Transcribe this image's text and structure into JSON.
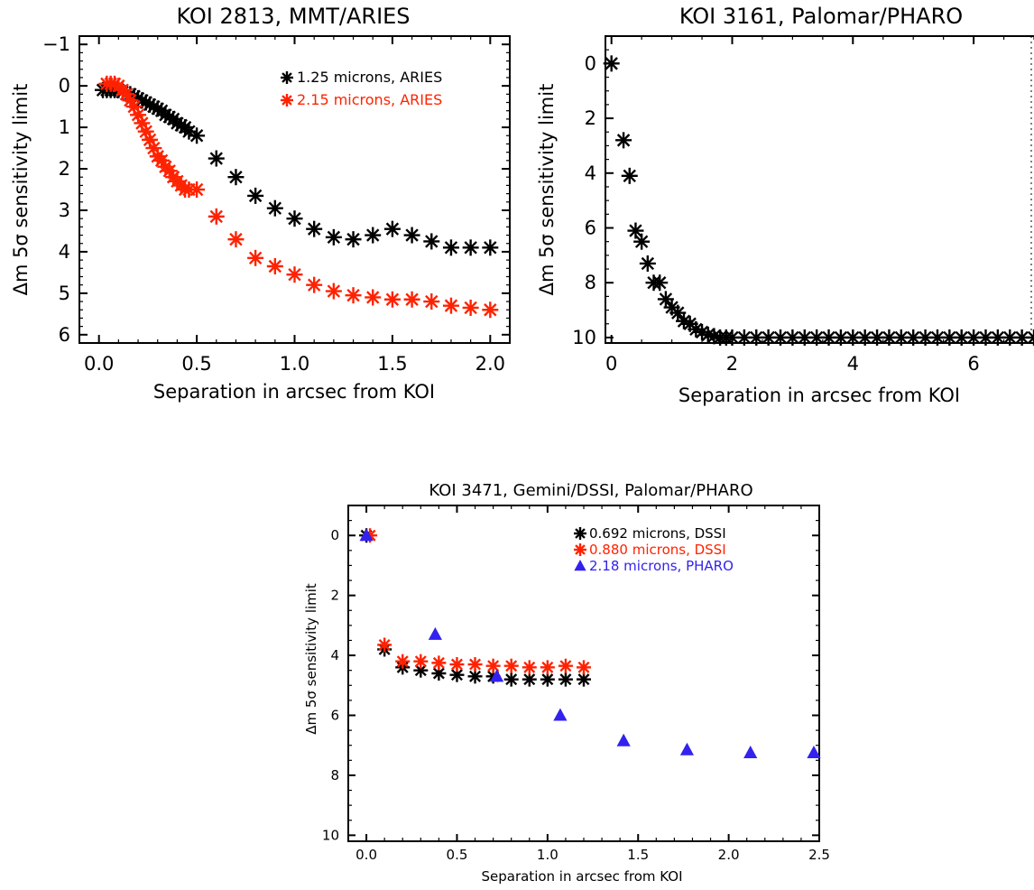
{
  "chart_data": [
    {
      "type": "scatter",
      "title": "KOI 2813, MMT/ARIES",
      "xlabel": "Separation in arcsec from KOI",
      "ylabel": "Δm 5σ sensitivity limit",
      "xlim": [
        -0.1,
        2.1
      ],
      "ylim": [
        -1.2,
        6.2
      ],
      "y_inverted": true,
      "xticks": [
        "0.0",
        "0.5",
        "1.0",
        "1.5",
        "2.0"
      ],
      "yticks": [
        "−1",
        "0",
        "1",
        "2",
        "3",
        "4",
        "5",
        "6"
      ],
      "legend_position": "top-right",
      "series": [
        {
          "name": "1.25 microns, ARIES",
          "color": "#000000",
          "marker": "asterisk",
          "x": [
            0.02,
            0.04,
            0.06,
            0.08,
            0.1,
            0.12,
            0.14,
            0.16,
            0.18,
            0.2,
            0.22,
            0.24,
            0.26,
            0.28,
            0.3,
            0.32,
            0.34,
            0.36,
            0.38,
            0.4,
            0.42,
            0.44,
            0.46,
            0.5,
            0.6,
            0.7,
            0.8,
            0.9,
            1.0,
            1.1,
            1.2,
            1.3,
            1.4,
            1.5,
            1.6,
            1.7,
            1.8,
            1.9,
            2.0
          ],
          "y": [
            0.1,
            0.1,
            0.1,
            0.1,
            0.1,
            0.15,
            0.2,
            0.2,
            0.25,
            0.3,
            0.35,
            0.4,
            0.45,
            0.5,
            0.55,
            0.6,
            0.7,
            0.75,
            0.8,
            0.9,
            0.95,
            1.0,
            1.1,
            1.2,
            1.75,
            2.2,
            2.65,
            2.95,
            3.2,
            3.45,
            3.65,
            3.7,
            3.6,
            3.45,
            3.6,
            3.75,
            3.9,
            3.9,
            3.9
          ]
        },
        {
          "name": "2.15 microns, ARIES",
          "color": "#ff2200",
          "marker": "asterisk",
          "x": [
            0.04,
            0.06,
            0.08,
            0.1,
            0.12,
            0.14,
            0.16,
            0.18,
            0.2,
            0.22,
            0.24,
            0.26,
            0.28,
            0.3,
            0.32,
            0.34,
            0.36,
            0.38,
            0.4,
            0.42,
            0.44,
            0.46,
            0.5,
            0.6,
            0.7,
            0.8,
            0.9,
            1.0,
            1.1,
            1.2,
            1.3,
            1.4,
            1.5,
            1.6,
            1.7,
            1.8,
            1.9,
            2.0
          ],
          "y": [
            -0.05,
            -0.05,
            -0.05,
            0.0,
            0.1,
            0.2,
            0.35,
            0.5,
            0.7,
            0.9,
            1.1,
            1.3,
            1.5,
            1.7,
            1.8,
            1.95,
            2.05,
            2.2,
            2.3,
            2.4,
            2.5,
            2.5,
            2.5,
            3.15,
            3.7,
            4.15,
            4.35,
            4.55,
            4.8,
            4.95,
            5.05,
            5.1,
            5.15,
            5.15,
            5.2,
            5.3,
            5.35,
            5.4
          ]
        }
      ]
    },
    {
      "type": "scatter",
      "title": "KOI 3161, Palomar/PHARO",
      "xlabel": "Separation in arcsec from KOI",
      "ylabel": "Δm 5σ sensitivity limit",
      "xlim": [
        -0.1,
        7.0
      ],
      "ylim": [
        -1.0,
        10.2
      ],
      "y_inverted": true,
      "xticks": [
        "0",
        "2",
        "4",
        "6"
      ],
      "yticks": [
        "0",
        "2",
        "4",
        "6",
        "8",
        "10"
      ],
      "series": [
        {
          "name": "",
          "color": "#000000",
          "marker": "asterisk",
          "x": [
            0.0,
            0.2,
            0.3,
            0.4,
            0.5,
            0.6,
            0.7,
            0.8,
            0.9,
            1.0,
            1.1,
            1.2,
            1.3,
            1.4,
            1.5,
            1.6,
            1.7,
            1.8,
            1.9,
            2.0,
            2.2,
            2.4,
            2.6,
            2.8,
            3.0,
            3.2,
            3.4,
            3.6,
            3.8,
            4.0,
            4.2,
            4.4,
            4.6,
            4.8,
            5.0,
            5.2,
            5.4,
            5.6,
            5.8,
            6.0,
            6.2,
            6.4,
            6.6,
            6.8,
            7.0
          ],
          "y": [
            0.0,
            2.8,
            4.1,
            6.1,
            6.5,
            7.3,
            8.0,
            8.0,
            8.6,
            8.9,
            9.1,
            9.4,
            9.5,
            9.7,
            9.8,
            9.9,
            9.95,
            10.0,
            10.0,
            10.0,
            10.0,
            10.0,
            10.0,
            10.0,
            10.0,
            10.0,
            10.0,
            10.0,
            10.0,
            10.0,
            10.0,
            10.0,
            10.0,
            10.0,
            10.0,
            10.0,
            10.0,
            10.0,
            10.0,
            10.0,
            10.0,
            10.0,
            10.0,
            10.0,
            10.0
          ]
        }
      ]
    },
    {
      "type": "scatter",
      "title": "KOI 3471, Gemini/DSSI, Palomar/PHARO",
      "xlabel": "Separation in arcsec from KOI",
      "ylabel": "Δm 5σ sensitivity limit",
      "xlim": [
        -0.1,
        2.5
      ],
      "ylim": [
        -1.0,
        10.2
      ],
      "y_inverted": true,
      "xticks": [
        "0.0",
        "0.5",
        "1.0",
        "1.5",
        "2.0",
        "2.5"
      ],
      "yticks": [
        "0",
        "2",
        "4",
        "6",
        "8",
        "10"
      ],
      "legend_position": "top-right",
      "series": [
        {
          "name": "0.692 microns, DSSI",
          "color": "#000000",
          "marker": "asterisk",
          "x": [
            0.0,
            0.1,
            0.2,
            0.3,
            0.4,
            0.5,
            0.6,
            0.7,
            0.8,
            0.9,
            1.0,
            1.1,
            1.2
          ],
          "y": [
            0.0,
            3.8,
            4.4,
            4.5,
            4.6,
            4.65,
            4.7,
            4.7,
            4.8,
            4.8,
            4.8,
            4.8,
            4.8
          ]
        },
        {
          "name": "0.880 microns, DSSI",
          "color": "#ff2200",
          "marker": "asterisk",
          "x": [
            0.02,
            0.1,
            0.2,
            0.3,
            0.4,
            0.5,
            0.6,
            0.7,
            0.8,
            0.9,
            1.0,
            1.1,
            1.2
          ],
          "y": [
            0.0,
            3.65,
            4.2,
            4.2,
            4.25,
            4.3,
            4.3,
            4.35,
            4.35,
            4.4,
            4.4,
            4.35,
            4.4
          ]
        },
        {
          "name": "2.18 microns, PHARO",
          "color": "#3322ee",
          "marker": "triangle",
          "x": [
            0.0,
            0.38,
            0.72,
            1.07,
            1.42,
            1.77,
            2.12,
            2.47
          ],
          "y": [
            0.0,
            3.3,
            4.7,
            6.0,
            6.85,
            7.15,
            7.25,
            7.25
          ]
        }
      ]
    }
  ]
}
